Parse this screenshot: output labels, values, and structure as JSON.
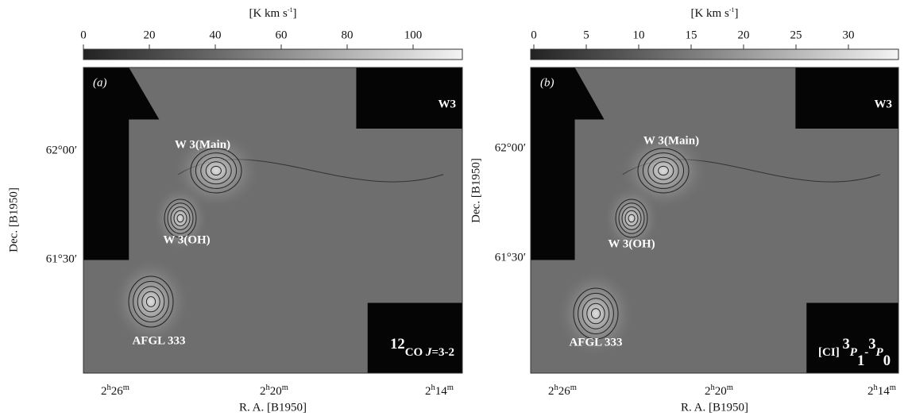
{
  "panels": [
    {
      "colorbar": {
        "unit": [
          "[K km s",
          "-1",
          "]"
        ],
        "ticks": [
          0,
          20,
          40,
          60,
          80,
          100
        ]
      },
      "label": "(a)",
      "region": "W3",
      "sources": [
        "W 3(Main)",
        "W 3(OH)",
        "AFGL 333"
      ],
      "line": [
        "12",
        "CO ",
        "J",
        "=3-2"
      ],
      "y_ticks": [
        "62°00′",
        "61°30′"
      ],
      "y_label": "Dec. [B1950]",
      "x_ticks": [
        [
          "2",
          "h",
          "26",
          "m"
        ],
        [
          "2",
          "h",
          "20",
          "m"
        ],
        [
          "2",
          "h",
          "14",
          "m"
        ]
      ],
      "x_label": "R. A. [B1950]"
    },
    {
      "colorbar": {
        "unit": [
          "[K km s",
          "-1",
          "]"
        ],
        "ticks": [
          0,
          5,
          10,
          15,
          20,
          25,
          30
        ]
      },
      "label": "(b)",
      "region": "W3",
      "sources": [
        "W 3(Main)",
        "W 3(OH)",
        "AFGL 333"
      ],
      "line": [
        "[CI] ",
        "3",
        "P",
        "1",
        "-",
        "3",
        "P",
        "0"
      ],
      "y_ticks": [
        "62°00′",
        "61°30′"
      ],
      "y_label": "Dec. [B1950]",
      "x_ticks": [
        [
          "2",
          "h",
          "26",
          "m"
        ],
        [
          "2",
          "h",
          "20",
          "m"
        ],
        [
          "2",
          "h",
          "14",
          "m"
        ]
      ],
      "x_label": "R. A. [B1950]"
    }
  ]
}
